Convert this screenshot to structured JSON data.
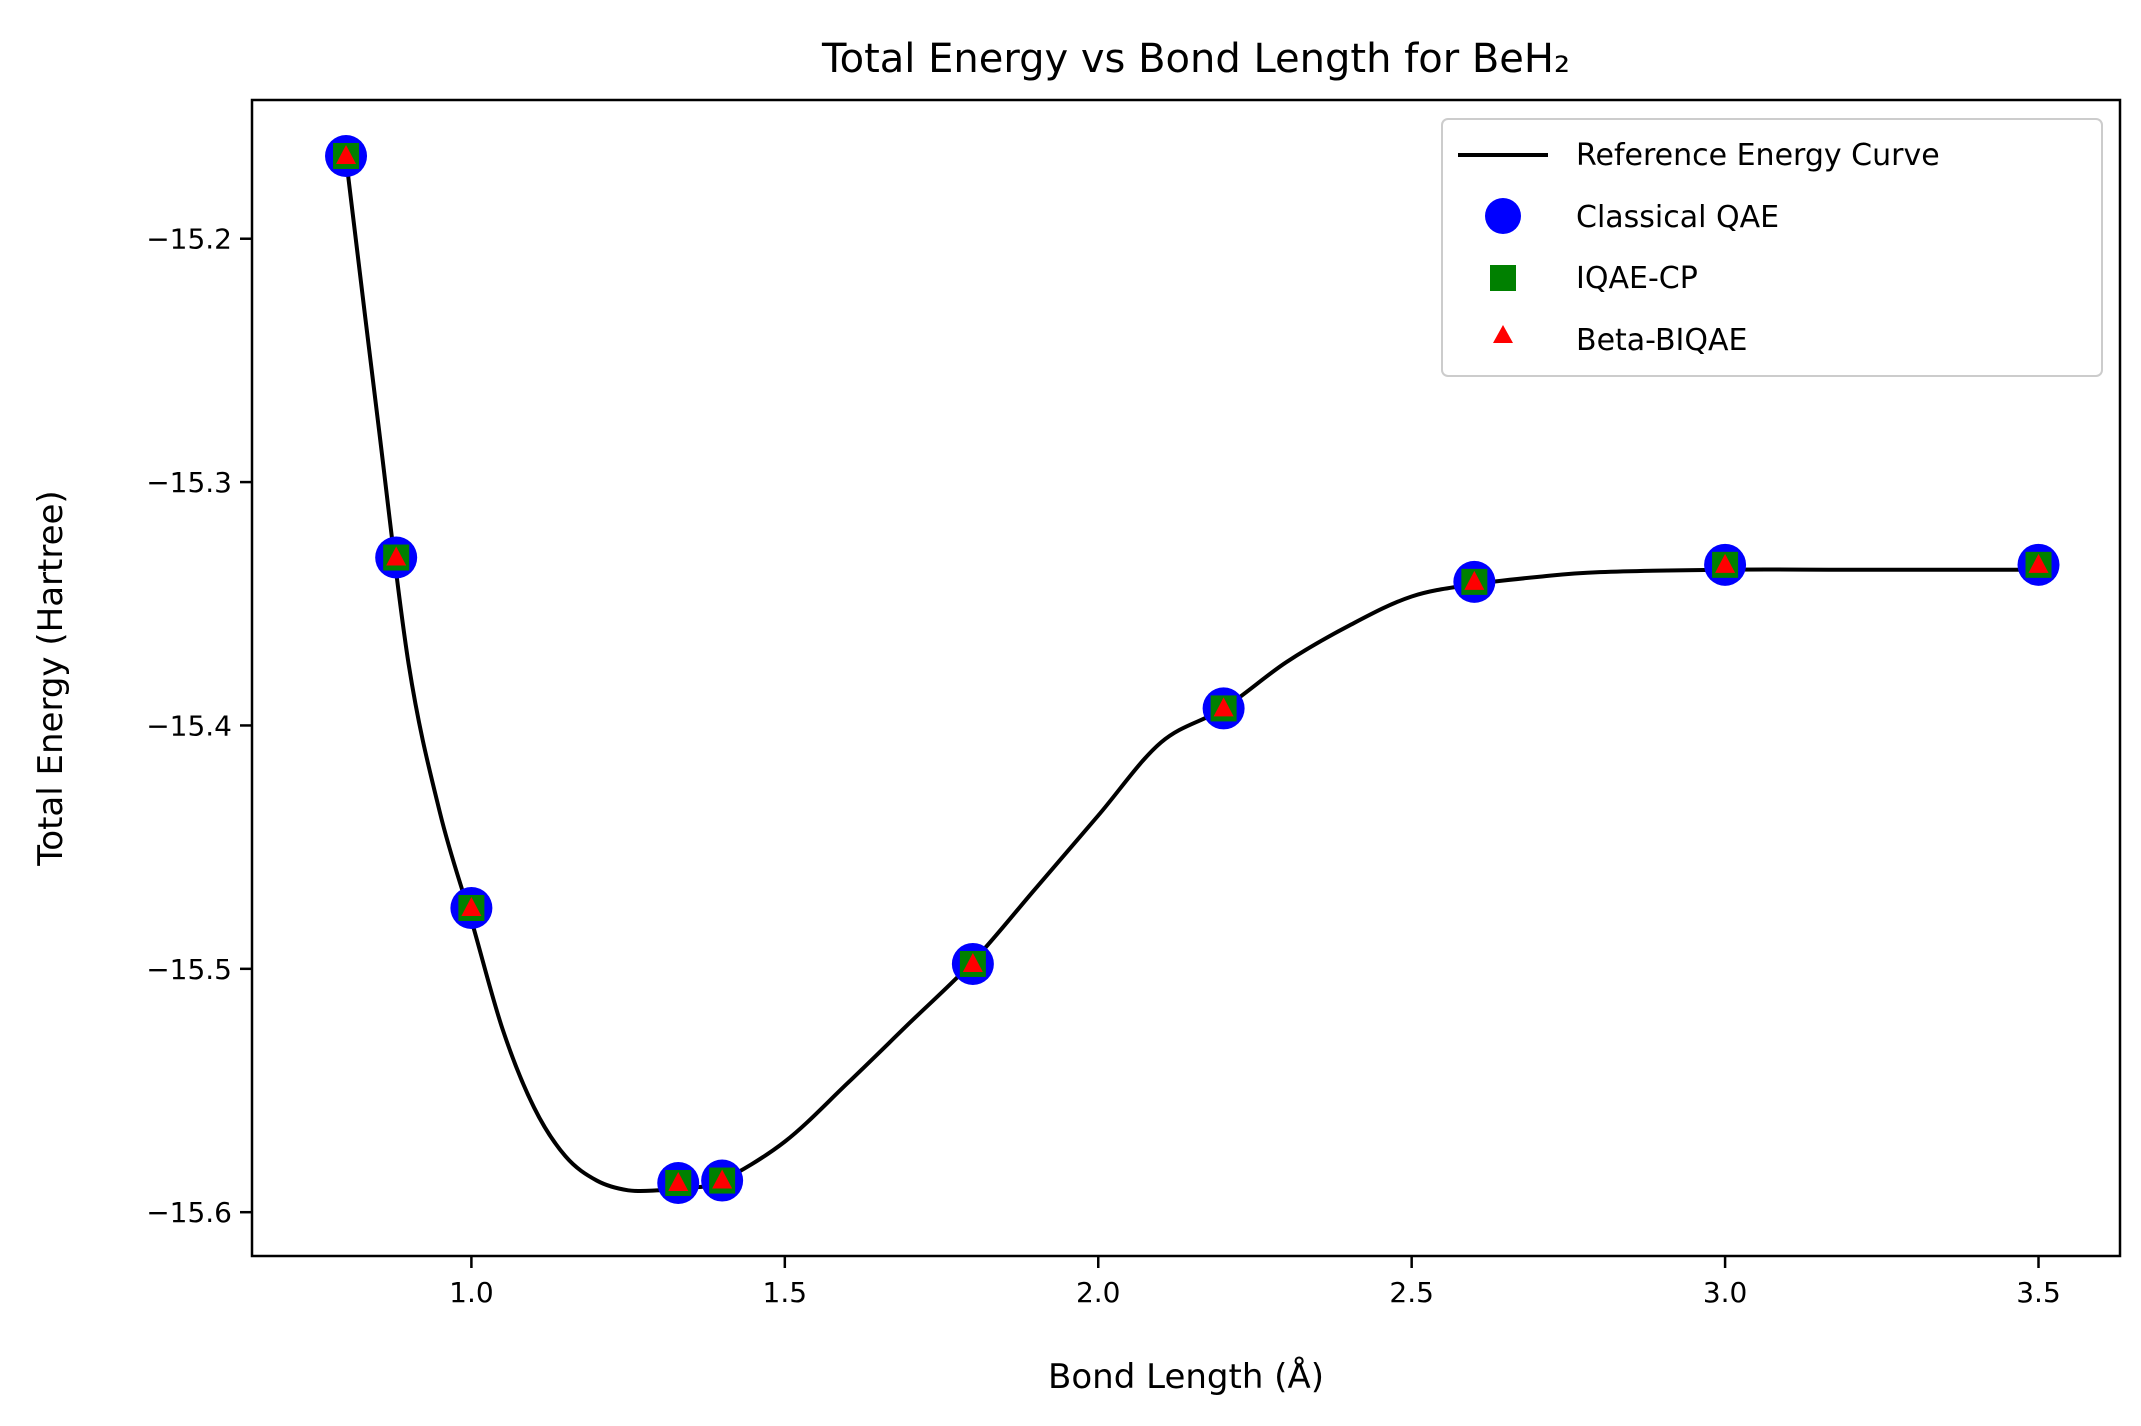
{
  "chart_data": {
    "type": "line",
    "title": "Total Energy vs Bond Length for BeH₂",
    "xlabel": "Bond Length (Å)",
    "ylabel": "Total Energy (Hartree)",
    "xlim": [
      0.65,
      3.63
    ],
    "ylim": [
      -15.618,
      -15.143
    ],
    "x_ticks": [
      1.0,
      1.5,
      2.0,
      2.5,
      3.0,
      3.5
    ],
    "x_tick_labels": [
      "1.0",
      "1.5",
      "2.0",
      "2.5",
      "3.0",
      "3.5"
    ],
    "y_ticks": [
      -15.2,
      -15.3,
      -15.4,
      -15.5,
      -15.6
    ],
    "y_tick_labels": [
      "−15.2",
      "−15.3",
      "−15.4",
      "−15.5",
      "−15.6"
    ],
    "grid": false,
    "legend_position": "top-right",
    "reference_curve": {
      "name": "Reference Energy Curve",
      "color": "#000000",
      "x": [
        0.8,
        0.85,
        0.9,
        0.95,
        1.0,
        1.05,
        1.1,
        1.15,
        1.2,
        1.25,
        1.3,
        1.35,
        1.4,
        1.5,
        1.6,
        1.7,
        1.8,
        1.9,
        2.0,
        2.1,
        2.2,
        2.3,
        2.4,
        2.5,
        2.6,
        2.7,
        2.8,
        3.0,
        3.2,
        3.5
      ],
      "y": [
        -15.167,
        -15.273,
        -15.375,
        -15.436,
        -15.48,
        -15.525,
        -15.557,
        -15.577,
        -15.587,
        -15.591,
        -15.591,
        -15.59,
        -15.587,
        -15.571,
        -15.547,
        -15.522,
        -15.497,
        -15.467,
        -15.437,
        -15.407,
        -15.393,
        -15.374,
        -15.359,
        -15.347,
        -15.342,
        -15.339,
        -15.337,
        -15.336,
        -15.336,
        -15.336
      ]
    },
    "series": [
      {
        "name": "Classical QAE",
        "marker": "circle",
        "color": "#0000ff",
        "x": [
          0.8,
          0.88,
          1.0,
          1.33,
          1.4,
          1.8,
          2.2,
          2.6,
          3.0,
          3.5
        ],
        "y": [
          -15.166,
          -15.331,
          -15.475,
          -15.588,
          -15.587,
          -15.498,
          -15.393,
          -15.341,
          -15.334,
          -15.334
        ]
      },
      {
        "name": "IQAE-CP",
        "marker": "square",
        "color": "#008000",
        "x": [
          0.8,
          0.88,
          1.0,
          1.33,
          1.4,
          1.8,
          2.2,
          2.6,
          3.0,
          3.5
        ],
        "y": [
          -15.166,
          -15.331,
          -15.475,
          -15.588,
          -15.587,
          -15.498,
          -15.393,
          -15.341,
          -15.334,
          -15.334
        ]
      },
      {
        "name": "Beta-BIQAE",
        "marker": "triangle",
        "color": "#ff0000",
        "x": [
          0.8,
          0.88,
          1.0,
          1.33,
          1.4,
          1.8,
          2.2,
          2.6,
          3.0,
          3.5
        ],
        "y": [
          -15.166,
          -15.331,
          -15.475,
          -15.588,
          -15.587,
          -15.498,
          -15.393,
          -15.341,
          -15.334,
          -15.334
        ]
      }
    ]
  }
}
